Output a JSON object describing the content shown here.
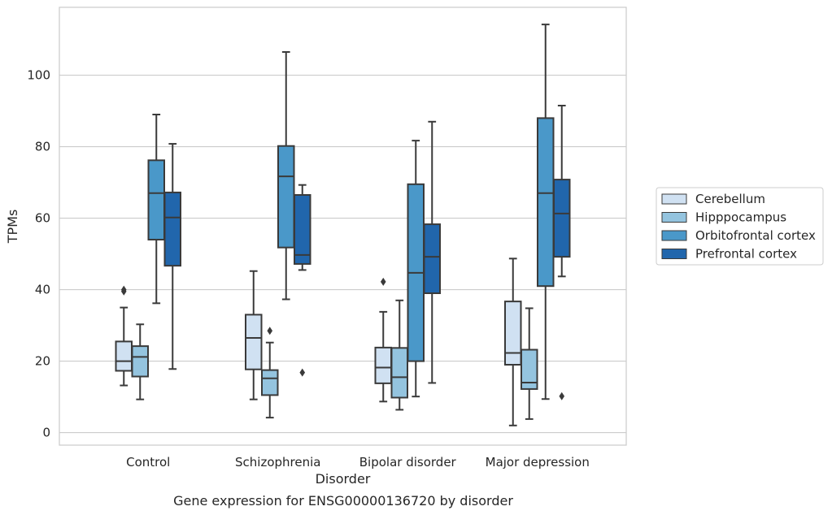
{
  "caption": "Gene expression for ENSG00000136720 by disorder",
  "chart_data": {
    "type": "box",
    "xlabel": "Disorder",
    "ylabel": "TPMs",
    "ylim": [
      -3.5,
      119
    ],
    "yticks": [
      0,
      20,
      40,
      60,
      80,
      100
    ],
    "grid": "horizontal",
    "legend_position": "right",
    "categories": [
      "Control",
      "Schizophrenia",
      "Bipolar disorder",
      "Major depression"
    ],
    "series": [
      {
        "name": "Cerebellum",
        "color": "#d0e1f2",
        "boxes": [
          {
            "whislo": 13.2,
            "q1": 17.3,
            "med": 20.0,
            "q3": 25.5,
            "whishi": 35.0,
            "fliers": [
              39.5,
              40.0
            ]
          },
          {
            "whislo": 9.3,
            "q1": 17.7,
            "med": 26.5,
            "q3": 33.0,
            "whishi": 45.2,
            "fliers": []
          },
          {
            "whislo": 8.7,
            "q1": 13.8,
            "med": 18.2,
            "q3": 23.8,
            "whishi": 33.8,
            "fliers": [
              42.2
            ]
          },
          {
            "whislo": 2.0,
            "q1": 19.0,
            "med": 22.3,
            "q3": 36.7,
            "whishi": 48.7,
            "fliers": []
          }
        ]
      },
      {
        "name": "Hipppocampus",
        "color": "#94c4df",
        "boxes": [
          {
            "whislo": 9.3,
            "q1": 15.7,
            "med": 21.2,
            "q3": 24.2,
            "whishi": 30.3,
            "fliers": []
          },
          {
            "whislo": 4.2,
            "q1": 10.5,
            "med": 15.2,
            "q3": 17.5,
            "whishi": 25.2,
            "fliers": [
              28.5
            ]
          },
          {
            "whislo": 6.4,
            "q1": 9.8,
            "med": 15.5,
            "q3": 23.7,
            "whishi": 37.0,
            "fliers": []
          },
          {
            "whislo": 3.8,
            "q1": 12.2,
            "med": 14.0,
            "q3": 23.2,
            "whishi": 34.8,
            "fliers": []
          }
        ]
      },
      {
        "name": "Orbitofrontal cortex",
        "color": "#4a98c9",
        "boxes": [
          {
            "whislo": 36.2,
            "q1": 54.0,
            "med": 67.0,
            "q3": 76.2,
            "whishi": 89.0,
            "fliers": []
          },
          {
            "whislo": 37.3,
            "q1": 51.8,
            "med": 71.7,
            "q3": 80.2,
            "whishi": 106.5,
            "fliers": []
          },
          {
            "whislo": 10.1,
            "q1": 20.0,
            "med": 44.7,
            "q3": 69.5,
            "whishi": 81.7,
            "fliers": []
          },
          {
            "whislo": 9.4,
            "q1": 41.0,
            "med": 67.0,
            "q3": 88.0,
            "whishi": 114.2,
            "fliers": []
          }
        ]
      },
      {
        "name": "Prefrontal cortex",
        "color": "#2166ac",
        "boxes": [
          {
            "whislo": 17.8,
            "q1": 46.7,
            "med": 60.2,
            "q3": 67.2,
            "whishi": 80.8,
            "fliers": []
          },
          {
            "whislo": 45.5,
            "q1": 47.2,
            "med": 49.7,
            "q3": 66.5,
            "whishi": 69.3,
            "fliers": [
              16.8
            ]
          },
          {
            "whislo": 13.9,
            "q1": 39.0,
            "med": 49.2,
            "q3": 58.3,
            "whishi": 87.0,
            "fliers": []
          },
          {
            "whislo": 43.7,
            "q1": 49.2,
            "med": 61.3,
            "q3": 70.8,
            "whishi": 91.5,
            "fliers": [
              10.2
            ]
          }
        ]
      }
    ]
  }
}
